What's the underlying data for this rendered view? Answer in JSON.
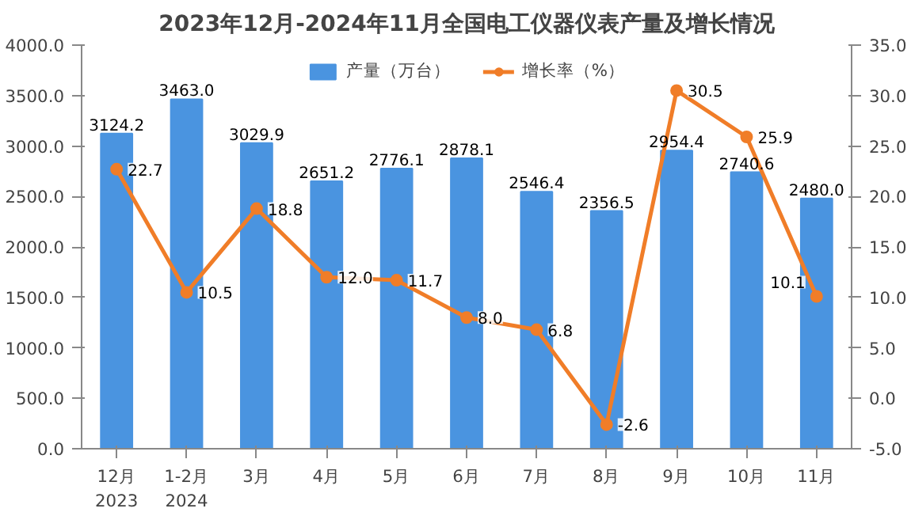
{
  "chart_data": {
    "type": "bar",
    "title": "2023年12月-2024年11月全国电工仪器仪表产量及增长情况",
    "categories": [
      "12月\n2023",
      "1-2月\n2024",
      "3月",
      "4月",
      "5月",
      "6月",
      "7月",
      "8月",
      "9月",
      "10月",
      "11月"
    ],
    "series": [
      {
        "name": "产量（万台）",
        "color": "#4a94e0",
        "values": [
          3124.2,
          3463.0,
          3029.9,
          2651.2,
          2776.1,
          2878.1,
          2546.4,
          2356.5,
          2954.4,
          2740.6,
          2480.0
        ],
        "value_labels": [
          "3124.2",
          "3463.0",
          "3029.9",
          "2651.2",
          "2776.1",
          "2878.1",
          "2546.4",
          "2356.5",
          "2954.4",
          "2740.6",
          "2480.0"
        ]
      },
      {
        "name": "增长率（%）",
        "type": "line",
        "axis": "y2",
        "color": "#f07d28",
        "marker": "circle",
        "values": [
          22.7,
          10.5,
          18.8,
          12.0,
          11.7,
          8.0,
          6.8,
          -2.6,
          30.5,
          25.9,
          10.1
        ],
        "value_labels": [
          "22.7",
          "10.5",
          "18.8",
          "12.0",
          "11.7",
          "8.0",
          "6.8",
          "-2.6",
          "30.5",
          "25.9",
          "10.1"
        ]
      }
    ],
    "ylim": [
      0,
      4000
    ],
    "yticks": [
      {
        "value": 0,
        "label": "0.0"
      },
      {
        "value": 500,
        "label": "500.0"
      },
      {
        "value": 1000,
        "label": "1000.0"
      },
      {
        "value": 1500,
        "label": "1500.0"
      },
      {
        "value": 2000,
        "label": "2000.0"
      },
      {
        "value": 2500,
        "label": "2500.0"
      },
      {
        "value": 3000,
        "label": "3000.0"
      },
      {
        "value": 3500,
        "label": "3500.0"
      },
      {
        "value": 4000,
        "label": "4000.0"
      }
    ],
    "y2lim": [
      -5,
      35
    ],
    "y2ticks": [
      {
        "value": -5,
        "label": "-5.0"
      },
      {
        "value": 0,
        "label": "0.0"
      },
      {
        "value": 5,
        "label": "5.0"
      },
      {
        "value": 10,
        "label": "10.0"
      },
      {
        "value": 15,
        "label": "15.0"
      },
      {
        "value": 20,
        "label": "20.0"
      },
      {
        "value": 25,
        "label": "25.0"
      },
      {
        "value": 30,
        "label": "30.0"
      },
      {
        "value": 35,
        "label": "35.0"
      }
    ],
    "legend": "top",
    "grid": false
  }
}
